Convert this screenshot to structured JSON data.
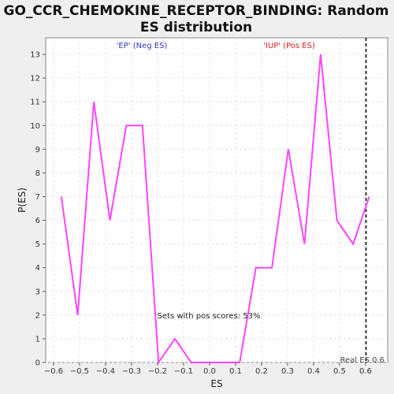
{
  "chart_data": {
    "type": "line",
    "title_lines": [
      "GO_CCR_CHEMOKINE_RECEPTOR_BINDING: Random",
      "ES distribution"
    ],
    "xlabel": "ES",
    "ylabel": "P(ES)",
    "xlim": [
      -0.63,
      0.685
    ],
    "ylim": [
      0,
      13.7
    ],
    "x_ticks": [
      -0.6,
      -0.5,
      -0.4,
      -0.3,
      -0.2,
      -0.1,
      0.0,
      0.1,
      0.2,
      0.3,
      0.4,
      0.5,
      0.6
    ],
    "x_tick_labels": [
      "−0.6",
      "−0.5",
      "−0.4",
      "−0.3",
      "−0.2",
      "−0.1",
      "0.0",
      "0.1",
      "0.2",
      "0.3",
      "0.4",
      "0.5",
      "0.6"
    ],
    "y_ticks": [
      0,
      1,
      2,
      3,
      4,
      5,
      6,
      7,
      8,
      9,
      10,
      11,
      12,
      13
    ],
    "grid": true,
    "series": [
      {
        "color": "#ff44ff",
        "points": [
          [
            -0.57,
            7
          ],
          [
            -0.507,
            2
          ],
          [
            -0.445,
            11
          ],
          [
            -0.383,
            6
          ],
          [
            -0.32,
            10
          ],
          [
            -0.258,
            10
          ],
          [
            -0.196,
            0
          ],
          [
            -0.133,
            1
          ],
          [
            -0.071,
            0
          ],
          [
            -0.009,
            0
          ],
          [
            0.053,
            0
          ],
          [
            0.116,
            0
          ],
          [
            0.178,
            4
          ],
          [
            0.24,
            4
          ],
          [
            0.303,
            9
          ],
          [
            0.365,
            5
          ],
          [
            0.427,
            13
          ],
          [
            0.49,
            6
          ],
          [
            0.552,
            5
          ],
          [
            0.614,
            7
          ]
        ]
      }
    ],
    "real_es": 0.6,
    "real_es_line_color": "#333333",
    "annotations": {
      "neg": {
        "text": "'EP' (Neg ES)",
        "color": "#3333cc"
      },
      "pos": {
        "text": "'IUP' (Pos ES)",
        "color": "#dd2222"
      },
      "pos_scores": {
        "text": "Sets with pos scores: 53%",
        "color": "#222222"
      },
      "real_es": {
        "text": "Real ES 0.6",
        "color": "#444444"
      }
    }
  }
}
